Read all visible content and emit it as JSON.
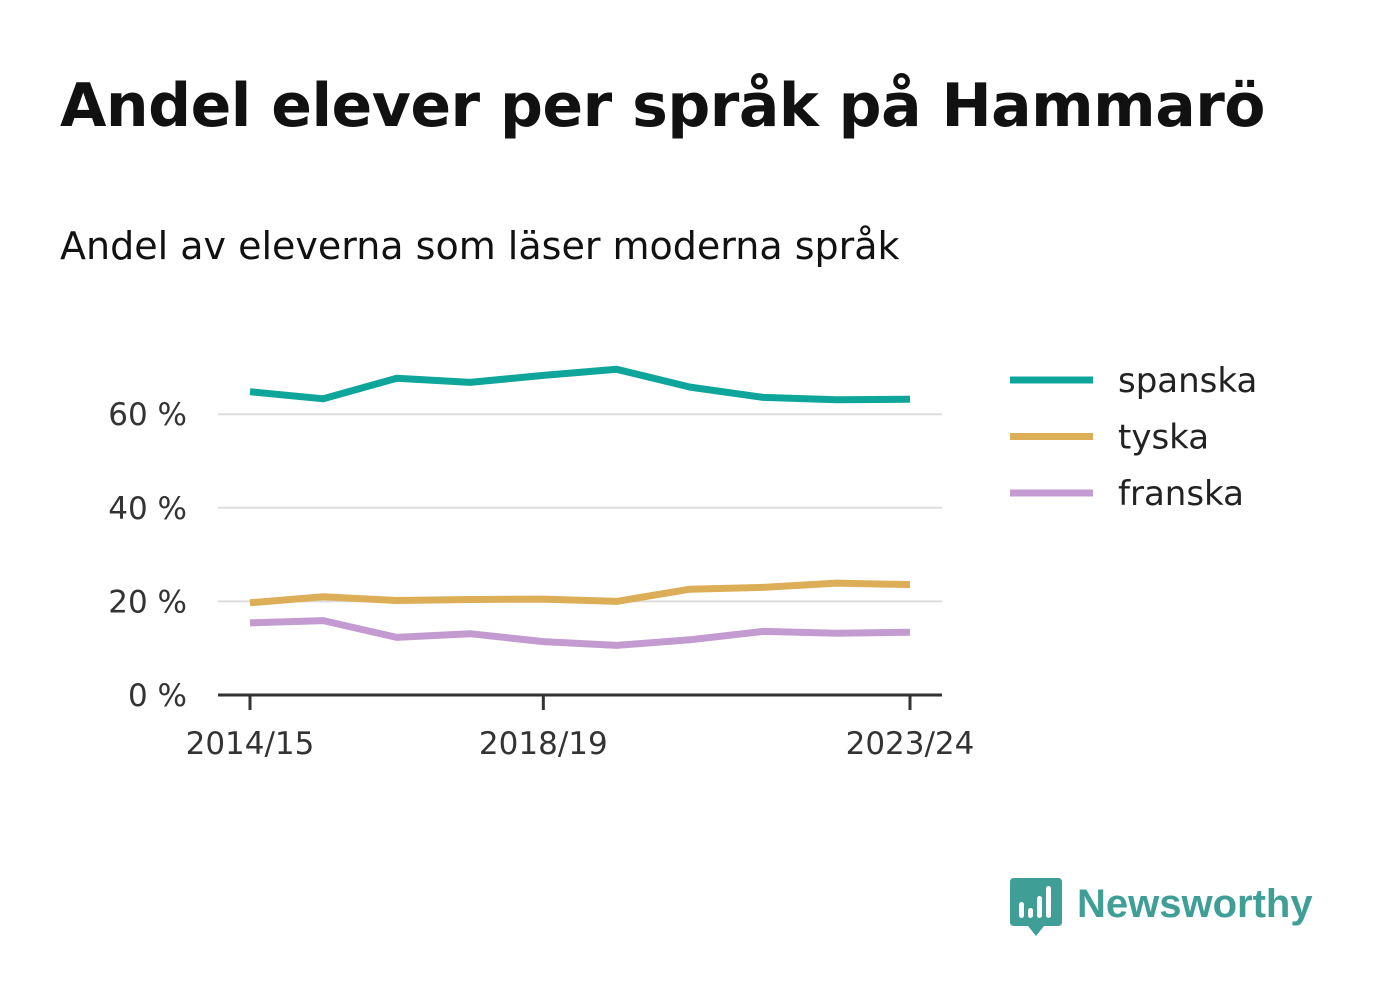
{
  "title": "Andel elever per språk på Hammarö",
  "subtitle": "Andel av eleverna som läser moderna språk",
  "brand": {
    "name": "Newsworthy",
    "icon": "newsworthy-logo-icon",
    "color": "#3f9e96"
  },
  "chart_data": {
    "type": "line",
    "title": "Andel elever per språk på Hammarö",
    "subtitle": "Andel av eleverna som läser moderna språk",
    "xlabel": "",
    "ylabel": "",
    "x": [
      "2014/15",
      "2015/16",
      "2016/17",
      "2017/18",
      "2018/19",
      "2019/20",
      "2020/21",
      "2021/22",
      "2022/23",
      "2023/24"
    ],
    "x_tick_labels": [
      "2014/15",
      "2018/19",
      "2023/24"
    ],
    "y_ticks": [
      0,
      20,
      40,
      60
    ],
    "y_tick_labels": [
      "0 %",
      "20 %",
      "40 %",
      "60 %"
    ],
    "ylim": [
      0,
      70
    ],
    "grid": true,
    "legend_position": "right",
    "series": [
      {
        "name": "spanska",
        "color": "#0ea59b",
        "values": [
          64.8,
          63.3,
          67.7,
          66.8,
          68.3,
          69.6,
          65.8,
          63.6,
          63.1,
          63.2
        ]
      },
      {
        "name": "tyska",
        "color": "#dcae57",
        "values": [
          19.7,
          21.0,
          20.2,
          20.4,
          20.5,
          20.0,
          22.6,
          23.0,
          23.9,
          23.6
        ]
      },
      {
        "name": "franska",
        "color": "#c39bd1",
        "values": [
          15.4,
          15.9,
          12.3,
          13.1,
          11.4,
          10.6,
          11.8,
          13.6,
          13.2,
          13.4
        ]
      }
    ]
  }
}
